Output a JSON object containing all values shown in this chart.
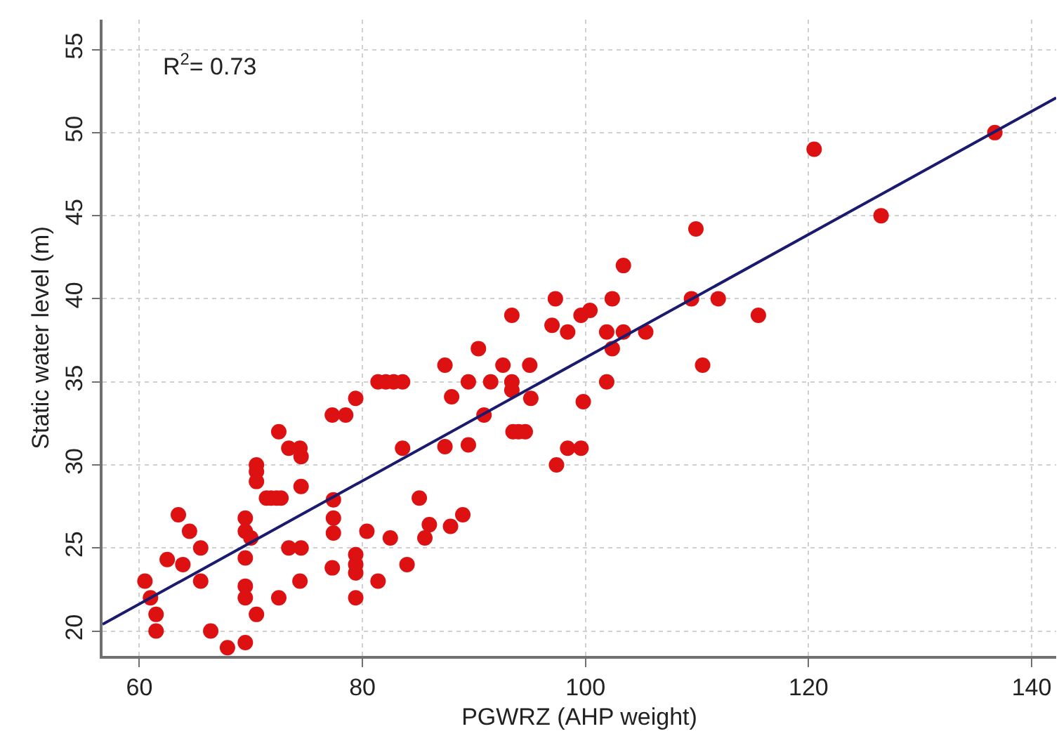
{
  "chart_data": {
    "type": "scatter",
    "xlabel": "PGWRZ (AHP weight)",
    "ylabel": "Static water level (m)",
    "annotations": [
      "R$^{2}$= 0.73"
    ],
    "xlim": [
      56.7,
      142.2
    ],
    "ylim": [
      18.5,
      56.8
    ],
    "xticks": [
      60,
      80,
      100,
      120,
      140
    ],
    "yticks": [
      20,
      25,
      30,
      35,
      40,
      45,
      50,
      55
    ],
    "grid": true,
    "marker": "circle",
    "series": [
      {
        "color": "#dd1111",
        "x": [
          60.5,
          61.0,
          61.5,
          61.5,
          62.5,
          63.5,
          63.9,
          64.5,
          65.5,
          65.5,
          66.4,
          67.9,
          69.5,
          69.5,
          69.5,
          69.5,
          69.5,
          69.5,
          70.0,
          70.5,
          70.5,
          70.5,
          70.5,
          71.4,
          71.8,
          72.3,
          72.7,
          72.5,
          72.5,
          73.4,
          73.4,
          74.4,
          74.5,
          74.5,
          74.5,
          74.4,
          77.3,
          78.5,
          79.4,
          77.4,
          77.4,
          77.4,
          77.3,
          79.4,
          79.4,
          79.4,
          79.4,
          80.4,
          81.4,
          81.4,
          82.1,
          82.8,
          83.6,
          83.6,
          82.5,
          84.0,
          85.1,
          86.0,
          85.6,
          87.4,
          88.0,
          87.4,
          87.9,
          89.0,
          89.5,
          89.5,
          90.9,
          91.5,
          92.6,
          93.4,
          93.4,
          95.1,
          95.0,
          93.5,
          94.0,
          94.6,
          97.4,
          90.4,
          93.4,
          97.0,
          97.3,
          98.4,
          99.6,
          100.4,
          101.9,
          102.4,
          102.4,
          101.9,
          103.4,
          103.4,
          105.4,
          109.5,
          109.9,
          110.5,
          111.9,
          115.5,
          120.5,
          126.5,
          136.7,
          99.8,
          98.4,
          99.6
        ],
        "values": [
          23.0,
          22.0,
          21.0,
          20.0,
          24.3,
          27.0,
          24.0,
          26.0,
          25.0,
          23.0,
          20.0,
          19.0,
          26.8,
          26.0,
          24.4,
          22.7,
          22.0,
          19.3,
          25.6,
          30.0,
          29.6,
          29.0,
          21.0,
          28.0,
          28.0,
          28.0,
          28.0,
          32.0,
          22.0,
          31.0,
          25.0,
          31.0,
          30.5,
          28.7,
          25.0,
          23.0,
          33.0,
          33.0,
          34.0,
          27.9,
          26.8,
          25.9,
          23.8,
          24.6,
          24.0,
          23.5,
          22.0,
          26.0,
          23.0,
          35.0,
          35.0,
          35.0,
          35.0,
          31.0,
          25.6,
          24.0,
          28.0,
          26.4,
          25.6,
          36.0,
          34.1,
          31.1,
          26.3,
          27.0,
          35.0,
          31.2,
          33.0,
          35.0,
          36.0,
          35.0,
          34.5,
          34.0,
          36.0,
          32.0,
          32.0,
          32.0,
          30.0,
          37.0,
          39.0,
          38.4,
          40.0,
          38.0,
          39.0,
          39.3,
          38.0,
          40.0,
          37.0,
          35.0,
          42.0,
          38.0,
          38.0,
          40.0,
          44.2,
          36.0,
          40.0,
          39.0,
          49.0,
          45.0,
          50.0,
          33.8,
          31.0,
          31.0
        ]
      },
      {
        "type": "line",
        "color": "#1a1a6e",
        "marker": "none",
        "x": [
          56.7,
          142.2
        ],
        "values": [
          20.4,
          52.1
        ]
      }
    ]
  }
}
